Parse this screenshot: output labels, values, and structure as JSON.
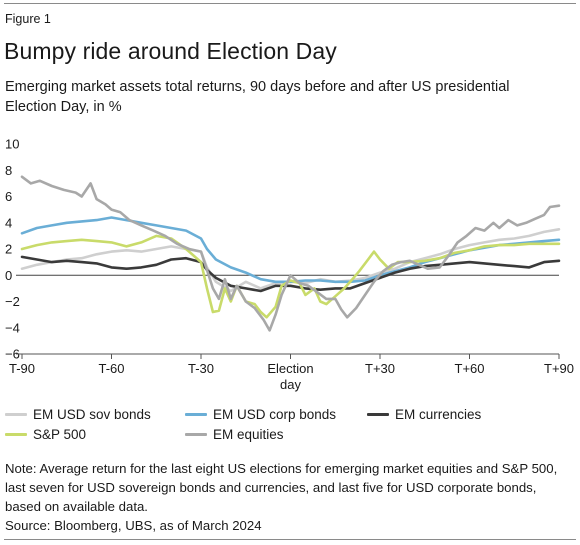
{
  "figure_label": "Figure 1",
  "title": "Bumpy ride around Election Day",
  "subtitle": "Emerging market assets total returns, 90 days before and after US presidential Election Day, in %",
  "note": "Note: Average return for the last eight US elections for emerging market equities and S&P 500, last seven for USD sovereign bonds and currencies, and last five for USD corporate bonds, based on available data.",
  "source": "Source: Bloomberg, UBS, as of March 2024",
  "chart_data": {
    "type": "line",
    "xlim": [
      -90,
      90
    ],
    "ylim": [
      -6,
      10
    ],
    "yticks": [
      10,
      8,
      6,
      4,
      2,
      0,
      -2,
      -4,
      -6
    ],
    "ytick_labels": [
      "10",
      "8",
      "6",
      "4",
      "2",
      "0",
      "−2",
      "−4",
      "−6"
    ],
    "xticks": [
      {
        "x": -90,
        "label": "T-90"
      },
      {
        "x": -60,
        "label": "T-60"
      },
      {
        "x": -30,
        "label": "T-30"
      },
      {
        "x": 0,
        "label": "Election",
        "label2": "day"
      },
      {
        "x": 30,
        "label": "T+30"
      },
      {
        "x": 60,
        "label": "T+60"
      },
      {
        "x": 90,
        "label": "T+90"
      }
    ],
    "zero_line": true,
    "grid": false,
    "legend_position": "bottom",
    "series": [
      {
        "name": "EM USD sov bonds",
        "color": "#cfcfcf",
        "points": [
          [
            -90,
            0.5
          ],
          [
            -85,
            0.8
          ],
          [
            -80,
            1.0
          ],
          [
            -75,
            1.2
          ],
          [
            -70,
            1.3
          ],
          [
            -65,
            1.6
          ],
          [
            -60,
            1.8
          ],
          [
            -55,
            1.9
          ],
          [
            -50,
            1.8
          ],
          [
            -45,
            2.0
          ],
          [
            -40,
            2.2
          ],
          [
            -35,
            2.0
          ],
          [
            -30,
            1.8
          ],
          [
            -28,
            0.6
          ],
          [
            -25,
            -0.5
          ],
          [
            -20,
            -1.2
          ],
          [
            -15,
            -0.5
          ],
          [
            -10,
            -1.0
          ],
          [
            -5,
            -0.6
          ],
          [
            0,
            -0.5
          ],
          [
            5,
            -0.6
          ],
          [
            10,
            -0.3
          ],
          [
            15,
            -0.5
          ],
          [
            20,
            -0.4
          ],
          [
            25,
            -0.2
          ],
          [
            30,
            0.2
          ],
          [
            35,
            0.5
          ],
          [
            40,
            1.0
          ],
          [
            45,
            1.3
          ],
          [
            50,
            1.6
          ],
          [
            55,
            2.0
          ],
          [
            60,
            2.3
          ],
          [
            65,
            2.5
          ],
          [
            70,
            2.7
          ],
          [
            75,
            2.8
          ],
          [
            80,
            3.0
          ],
          [
            85,
            3.3
          ],
          [
            90,
            3.5
          ]
        ]
      },
      {
        "name": "EM USD corp bonds",
        "color": "#6aaed6",
        "points": [
          [
            -90,
            3.2
          ],
          [
            -85,
            3.6
          ],
          [
            -80,
            3.8
          ],
          [
            -75,
            4.0
          ],
          [
            -70,
            4.1
          ],
          [
            -65,
            4.2
          ],
          [
            -60,
            4.4
          ],
          [
            -55,
            4.2
          ],
          [
            -50,
            4.0
          ],
          [
            -45,
            3.8
          ],
          [
            -40,
            3.6
          ],
          [
            -35,
            3.4
          ],
          [
            -30,
            2.8
          ],
          [
            -28,
            2.0
          ],
          [
            -25,
            1.2
          ],
          [
            -20,
            0.6
          ],
          [
            -15,
            0.2
          ],
          [
            -10,
            -0.3
          ],
          [
            -5,
            -0.5
          ],
          [
            0,
            -0.5
          ],
          [
            5,
            -0.4
          ],
          [
            10,
            -0.4
          ],
          [
            15,
            -0.5
          ],
          [
            20,
            -0.5
          ],
          [
            25,
            -0.4
          ],
          [
            30,
            0.0
          ],
          [
            35,
            0.3
          ],
          [
            40,
            0.6
          ],
          [
            45,
            1.0
          ],
          [
            50,
            1.3
          ],
          [
            55,
            1.6
          ],
          [
            60,
            1.9
          ],
          [
            65,
            2.1
          ],
          [
            70,
            2.3
          ],
          [
            75,
            2.4
          ],
          [
            80,
            2.5
          ],
          [
            85,
            2.6
          ],
          [
            90,
            2.7
          ]
        ]
      },
      {
        "name": "EM currencies",
        "color": "#3a3a3a",
        "points": [
          [
            -90,
            1.4
          ],
          [
            -85,
            1.2
          ],
          [
            -80,
            1.0
          ],
          [
            -75,
            1.1
          ],
          [
            -70,
            1.0
          ],
          [
            -65,
            0.9
          ],
          [
            -60,
            0.6
          ],
          [
            -55,
            0.5
          ],
          [
            -50,
            0.6
          ],
          [
            -45,
            0.8
          ],
          [
            -40,
            1.2
          ],
          [
            -35,
            1.3
          ],
          [
            -30,
            1.0
          ],
          [
            -28,
            0.4
          ],
          [
            -25,
            -0.2
          ],
          [
            -20,
            -0.8
          ],
          [
            -15,
            -1.0
          ],
          [
            -10,
            -1.2
          ],
          [
            -5,
            -0.8
          ],
          [
            0,
            -0.8
          ],
          [
            5,
            -1.0
          ],
          [
            10,
            -1.1
          ],
          [
            15,
            -1.0
          ],
          [
            20,
            -1.0
          ],
          [
            25,
            -0.6
          ],
          [
            30,
            -0.2
          ],
          [
            35,
            0.2
          ],
          [
            40,
            0.5
          ],
          [
            45,
            0.7
          ],
          [
            50,
            0.8
          ],
          [
            55,
            0.9
          ],
          [
            60,
            1.0
          ],
          [
            65,
            0.9
          ],
          [
            70,
            0.8
          ],
          [
            75,
            0.7
          ],
          [
            80,
            0.6
          ],
          [
            85,
            1.0
          ],
          [
            90,
            1.1
          ]
        ]
      },
      {
        "name": "S&P 500",
        "color": "#c9db6a",
        "points": [
          [
            -90,
            2.0
          ],
          [
            -85,
            2.3
          ],
          [
            -80,
            2.5
          ],
          [
            -75,
            2.6
          ],
          [
            -70,
            2.7
          ],
          [
            -65,
            2.6
          ],
          [
            -60,
            2.5
          ],
          [
            -55,
            2.2
          ],
          [
            -50,
            2.5
          ],
          [
            -45,
            3.0
          ],
          [
            -40,
            2.8
          ],
          [
            -35,
            2.0
          ],
          [
            -30,
            1.0
          ],
          [
            -28,
            -1.0
          ],
          [
            -26,
            -2.8
          ],
          [
            -24,
            -2.7
          ],
          [
            -22,
            -1.0
          ],
          [
            -20,
            -2.0
          ],
          [
            -18,
            -0.8
          ],
          [
            -15,
            -2.0
          ],
          [
            -12,
            -2.2
          ],
          [
            -10,
            -2.8
          ],
          [
            -8,
            -3.2
          ],
          [
            -5,
            -2.4
          ],
          [
            -3,
            -0.8
          ],
          [
            0,
            -0.4
          ],
          [
            3,
            -0.6
          ],
          [
            5,
            -1.5
          ],
          [
            8,
            -1.0
          ],
          [
            10,
            -2.0
          ],
          [
            12,
            -2.2
          ],
          [
            15,
            -1.6
          ],
          [
            18,
            -1.0
          ],
          [
            20,
            -0.5
          ],
          [
            23,
            0.3
          ],
          [
            26,
            1.2
          ],
          [
            28,
            1.8
          ],
          [
            30,
            1.2
          ],
          [
            33,
            0.5
          ],
          [
            36,
            1.0
          ],
          [
            40,
            1.0
          ],
          [
            45,
            1.1
          ],
          [
            50,
            1.3
          ],
          [
            55,
            1.7
          ],
          [
            60,
            1.9
          ],
          [
            65,
            2.2
          ],
          [
            70,
            2.3
          ],
          [
            75,
            2.3
          ],
          [
            80,
            2.4
          ],
          [
            85,
            2.4
          ],
          [
            90,
            2.4
          ]
        ]
      },
      {
        "name": "EM equities",
        "color": "#a8a8a8",
        "points": [
          [
            -90,
            7.5
          ],
          [
            -87,
            7.0
          ],
          [
            -84,
            7.2
          ],
          [
            -80,
            6.8
          ],
          [
            -76,
            6.5
          ],
          [
            -72,
            6.3
          ],
          [
            -70,
            6.0
          ],
          [
            -67,
            7.0
          ],
          [
            -65,
            5.8
          ],
          [
            -62,
            5.4
          ],
          [
            -60,
            5.0
          ],
          [
            -57,
            4.8
          ],
          [
            -54,
            4.2
          ],
          [
            -50,
            3.8
          ],
          [
            -46,
            3.4
          ],
          [
            -42,
            3.0
          ],
          [
            -38,
            2.4
          ],
          [
            -34,
            2.0
          ],
          [
            -30,
            1.8
          ],
          [
            -28,
            0.4
          ],
          [
            -26,
            -1.0
          ],
          [
            -24,
            -1.8
          ],
          [
            -22,
            -0.3
          ],
          [
            -20,
            -1.8
          ],
          [
            -18,
            -0.8
          ],
          [
            -15,
            -2.0
          ],
          [
            -12,
            -2.5
          ],
          [
            -9,
            -3.4
          ],
          [
            -7,
            -4.2
          ],
          [
            -5,
            -3.0
          ],
          [
            -3,
            -1.5
          ],
          [
            0,
            0.0
          ],
          [
            3,
            -0.6
          ],
          [
            6,
            -0.8
          ],
          [
            9,
            -1.3
          ],
          [
            12,
            -1.8
          ],
          [
            15,
            -1.8
          ],
          [
            17,
            -2.6
          ],
          [
            19,
            -3.2
          ],
          [
            22,
            -2.5
          ],
          [
            25,
            -1.5
          ],
          [
            28,
            -0.5
          ],
          [
            31,
            0.3
          ],
          [
            34,
            0.8
          ],
          [
            37,
            1.0
          ],
          [
            40,
            1.1
          ],
          [
            43,
            0.8
          ],
          [
            46,
            0.5
          ],
          [
            50,
            0.6
          ],
          [
            53,
            1.5
          ],
          [
            56,
            2.5
          ],
          [
            59,
            3.0
          ],
          [
            62,
            3.6
          ],
          [
            65,
            3.4
          ],
          [
            68,
            4.0
          ],
          [
            70,
            3.6
          ],
          [
            73,
            4.2
          ],
          [
            76,
            3.8
          ],
          [
            79,
            4.0
          ],
          [
            82,
            4.3
          ],
          [
            85,
            4.6
          ],
          [
            87,
            5.2
          ],
          [
            90,
            5.3
          ]
        ]
      }
    ]
  },
  "legend": [
    {
      "label": "EM USD sov bonds",
      "color": "#cfcfcf"
    },
    {
      "label": "EM USD corp bonds",
      "color": "#6aaed6"
    },
    {
      "label": "EM currencies",
      "color": "#3a3a3a"
    },
    {
      "label": "S&P 500",
      "color": "#c9db6a"
    },
    {
      "label": "EM equities",
      "color": "#a8a8a8"
    }
  ]
}
